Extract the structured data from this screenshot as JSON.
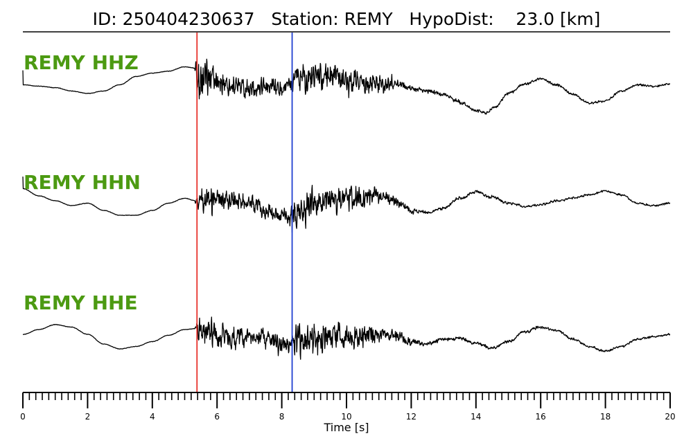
{
  "chart_data": {
    "type": "line",
    "title": "ID: 250404230637   Station: REMY   HypoDist:    23.0 [km]",
    "xlabel": "Time [s]",
    "xlim": [
      0,
      20
    ],
    "x_ticks": [
      "0",
      "2",
      "4",
      "6",
      "8",
      "10",
      "12",
      "14",
      "16",
      "18",
      "20"
    ],
    "grid": false,
    "picks": [
      {
        "phase": "P",
        "time": 5.38,
        "color": "#e8302a"
      },
      {
        "phase": "S",
        "time": 8.32,
        "color": "#1f3fd0"
      }
    ],
    "channel_color": "#4c9a12",
    "trace_color": "#000000",
    "series": [
      {
        "name": "REMY HHZ",
        "low": [
          [
            0,
            0.08
          ],
          [
            0.5,
            0.05
          ],
          [
            1,
            0.02
          ],
          [
            1.5,
            -0.05
          ],
          [
            2,
            -0.1
          ],
          [
            2.5,
            -0.05
          ],
          [
            3,
            0.08
          ],
          [
            3.5,
            0.25
          ],
          [
            4,
            0.32
          ],
          [
            4.5,
            0.36
          ],
          [
            5,
            0.45
          ],
          [
            5.35,
            0.42
          ],
          [
            5.5,
            0.3
          ],
          [
            6,
            0.15
          ],
          [
            6.5,
            0.05
          ],
          [
            7,
            0.0
          ],
          [
            7.5,
            0.02
          ],
          [
            8,
            0.0
          ],
          [
            8.5,
            0.2
          ],
          [
            9,
            0.28
          ],
          [
            9.5,
            0.25
          ],
          [
            10,
            0.15
          ],
          [
            10.5,
            0.12
          ],
          [
            11,
            0.06
          ],
          [
            11.5,
            0.12
          ],
          [
            12,
            0.0
          ],
          [
            12.5,
            -0.05
          ],
          [
            13,
            -0.12
          ],
          [
            13.5,
            -0.28
          ],
          [
            14,
            -0.45
          ],
          [
            14.3,
            -0.5
          ],
          [
            14.6,
            -0.38
          ],
          [
            15,
            -0.1
          ],
          [
            15.5,
            0.1
          ],
          [
            16,
            0.2
          ],
          [
            16.5,
            0.08
          ],
          [
            17,
            -0.12
          ],
          [
            17.5,
            -0.3
          ],
          [
            18,
            -0.25
          ],
          [
            18.5,
            -0.05
          ],
          [
            19,
            0.08
          ],
          [
            19.5,
            0.04
          ],
          [
            20,
            0.1
          ]
        ],
        "noise": [
          [
            0,
            0.008
          ],
          [
            5.3,
            0.008
          ],
          [
            5.4,
            0.9
          ],
          [
            5.7,
            0.55
          ],
          [
            6.5,
            0.35
          ],
          [
            8.2,
            0.28
          ],
          [
            8.4,
            0.45
          ],
          [
            9,
            0.55
          ],
          [
            10,
            0.4
          ],
          [
            11,
            0.28
          ],
          [
            12,
            0.08
          ],
          [
            15,
            0.04
          ],
          [
            20,
            0.03
          ]
        ],
        "spike_start": 0.3,
        "seed": 11
      },
      {
        "name": "REMY HHN",
        "low": [
          [
            0,
            0.25
          ],
          [
            0.5,
            0.1
          ],
          [
            1,
            0.0
          ],
          [
            1.5,
            -0.1
          ],
          [
            2,
            -0.05
          ],
          [
            2.5,
            -0.2
          ],
          [
            3,
            -0.3
          ],
          [
            3.5,
            -0.3
          ],
          [
            4,
            -0.2
          ],
          [
            4.5,
            -0.05
          ],
          [
            5,
            0.05
          ],
          [
            5.35,
            0.0
          ],
          [
            6,
            0.05
          ],
          [
            6.5,
            0.0
          ],
          [
            7,
            -0.05
          ],
          [
            7.5,
            -0.2
          ],
          [
            8,
            -0.3
          ],
          [
            8.3,
            -0.42
          ],
          [
            8.6,
            -0.25
          ],
          [
            9,
            -0.05
          ],
          [
            10,
            0.05
          ],
          [
            10.5,
            0.1
          ],
          [
            11,
            0.1
          ],
          [
            11.5,
            0.0
          ],
          [
            12,
            -0.2
          ],
          [
            12.5,
            -0.25
          ],
          [
            13,
            -0.15
          ],
          [
            13.5,
            0.05
          ],
          [
            14,
            0.18
          ],
          [
            14.5,
            0.08
          ],
          [
            15,
            -0.05
          ],
          [
            15.5,
            -0.12
          ],
          [
            16,
            -0.08
          ],
          [
            16.5,
            0.0
          ],
          [
            17,
            0.05
          ],
          [
            17.5,
            0.12
          ],
          [
            18,
            0.2
          ],
          [
            18.5,
            0.12
          ],
          [
            19,
            -0.05
          ],
          [
            19.5,
            -0.1
          ],
          [
            20,
            -0.05
          ]
        ],
        "noise": [
          [
            0,
            0.008
          ],
          [
            5.3,
            0.008
          ],
          [
            5.4,
            0.35
          ],
          [
            5.9,
            0.45
          ],
          [
            6.5,
            0.3
          ],
          [
            8.2,
            0.22
          ],
          [
            8.4,
            0.65
          ],
          [
            9.3,
            0.5
          ],
          [
            10.5,
            0.3
          ],
          [
            11.5,
            0.15
          ],
          [
            12.5,
            0.05
          ],
          [
            20,
            0.03
          ]
        ],
        "spike_start": 0.25,
        "seed": 27
      },
      {
        "name": "REMY HHE",
        "low": [
          [
            0,
            0.1
          ],
          [
            0.5,
            0.2
          ],
          [
            1,
            0.3
          ],
          [
            1.5,
            0.25
          ],
          [
            2,
            0.1
          ],
          [
            2.5,
            -0.1
          ],
          [
            3,
            -0.2
          ],
          [
            3.5,
            -0.15
          ],
          [
            4,
            -0.05
          ],
          [
            4.5,
            0.08
          ],
          [
            5,
            0.2
          ],
          [
            5.35,
            0.22
          ],
          [
            6,
            0.1
          ],
          [
            6.5,
            0.0
          ],
          [
            7,
            0.05
          ],
          [
            7.5,
            0.02
          ],
          [
            8,
            -0.1
          ],
          [
            8.5,
            -0.08
          ],
          [
            9,
            0.02
          ],
          [
            10,
            0.05
          ],
          [
            11,
            0.1
          ],
          [
            11.5,
            0.1
          ],
          [
            12,
            -0.05
          ],
          [
            12.5,
            -0.1
          ],
          [
            13,
            0.0
          ],
          [
            13.5,
            0.02
          ],
          [
            14,
            -0.08
          ],
          [
            14.5,
            -0.18
          ],
          [
            15,
            -0.05
          ],
          [
            15.5,
            0.15
          ],
          [
            16,
            0.25
          ],
          [
            16.5,
            0.18
          ],
          [
            17,
            0.0
          ],
          [
            17.5,
            -0.15
          ],
          [
            18,
            -0.25
          ],
          [
            18.5,
            -0.15
          ],
          [
            19,
            0.0
          ],
          [
            19.5,
            0.05
          ],
          [
            20,
            0.1
          ]
        ],
        "noise": [
          [
            0,
            0.008
          ],
          [
            5.3,
            0.008
          ],
          [
            5.4,
            0.5
          ],
          [
            6,
            0.4
          ],
          [
            7,
            0.3
          ],
          [
            8.2,
            0.3
          ],
          [
            8.5,
            0.6
          ],
          [
            9.3,
            0.5
          ],
          [
            10.3,
            0.35
          ],
          [
            11.5,
            0.18
          ],
          [
            12.5,
            0.06
          ],
          [
            20,
            0.03
          ]
        ],
        "spike_start": 0.0,
        "seed": 53
      }
    ]
  }
}
